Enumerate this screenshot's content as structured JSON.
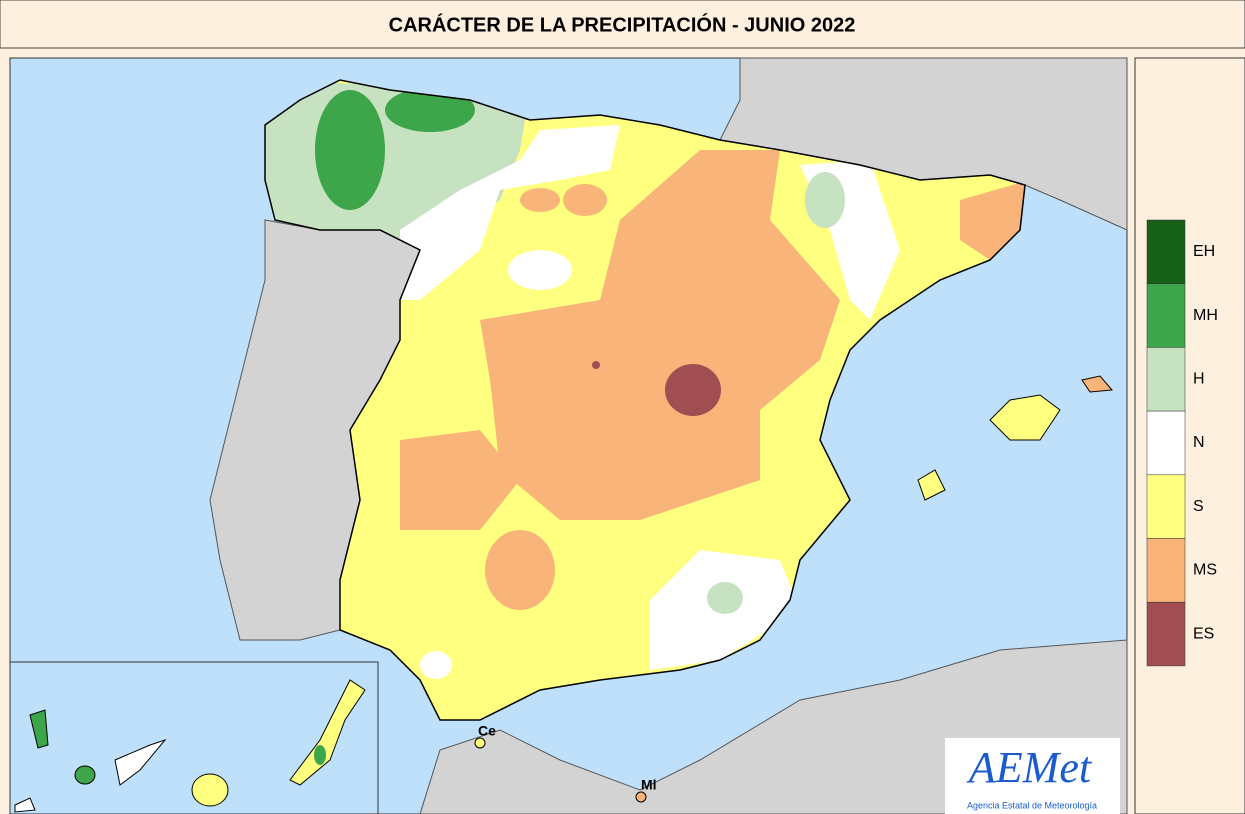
{
  "header": {
    "title": "CARÁCTER DE LA PRECIPITACIÓN - JUNIO  2022"
  },
  "legend": {
    "items": [
      {
        "label": "EH",
        "color": "#17601a"
      },
      {
        "label": "MH",
        "color": "#3da54a"
      },
      {
        "label": "H",
        "color": "#c6e2c0"
      },
      {
        "label": "N",
        "color": "#ffffff"
      },
      {
        "label": "S",
        "color": "#ffff80"
      },
      {
        "label": "MS",
        "color": "#f8b479"
      },
      {
        "label": "ES",
        "color": "#a14e52"
      }
    ]
  },
  "map_labels": [
    "Ce",
    "Ml"
  ],
  "logo": {
    "text": "AEMet",
    "subtitle": "Agencia Estatal de Meteorología"
  }
}
